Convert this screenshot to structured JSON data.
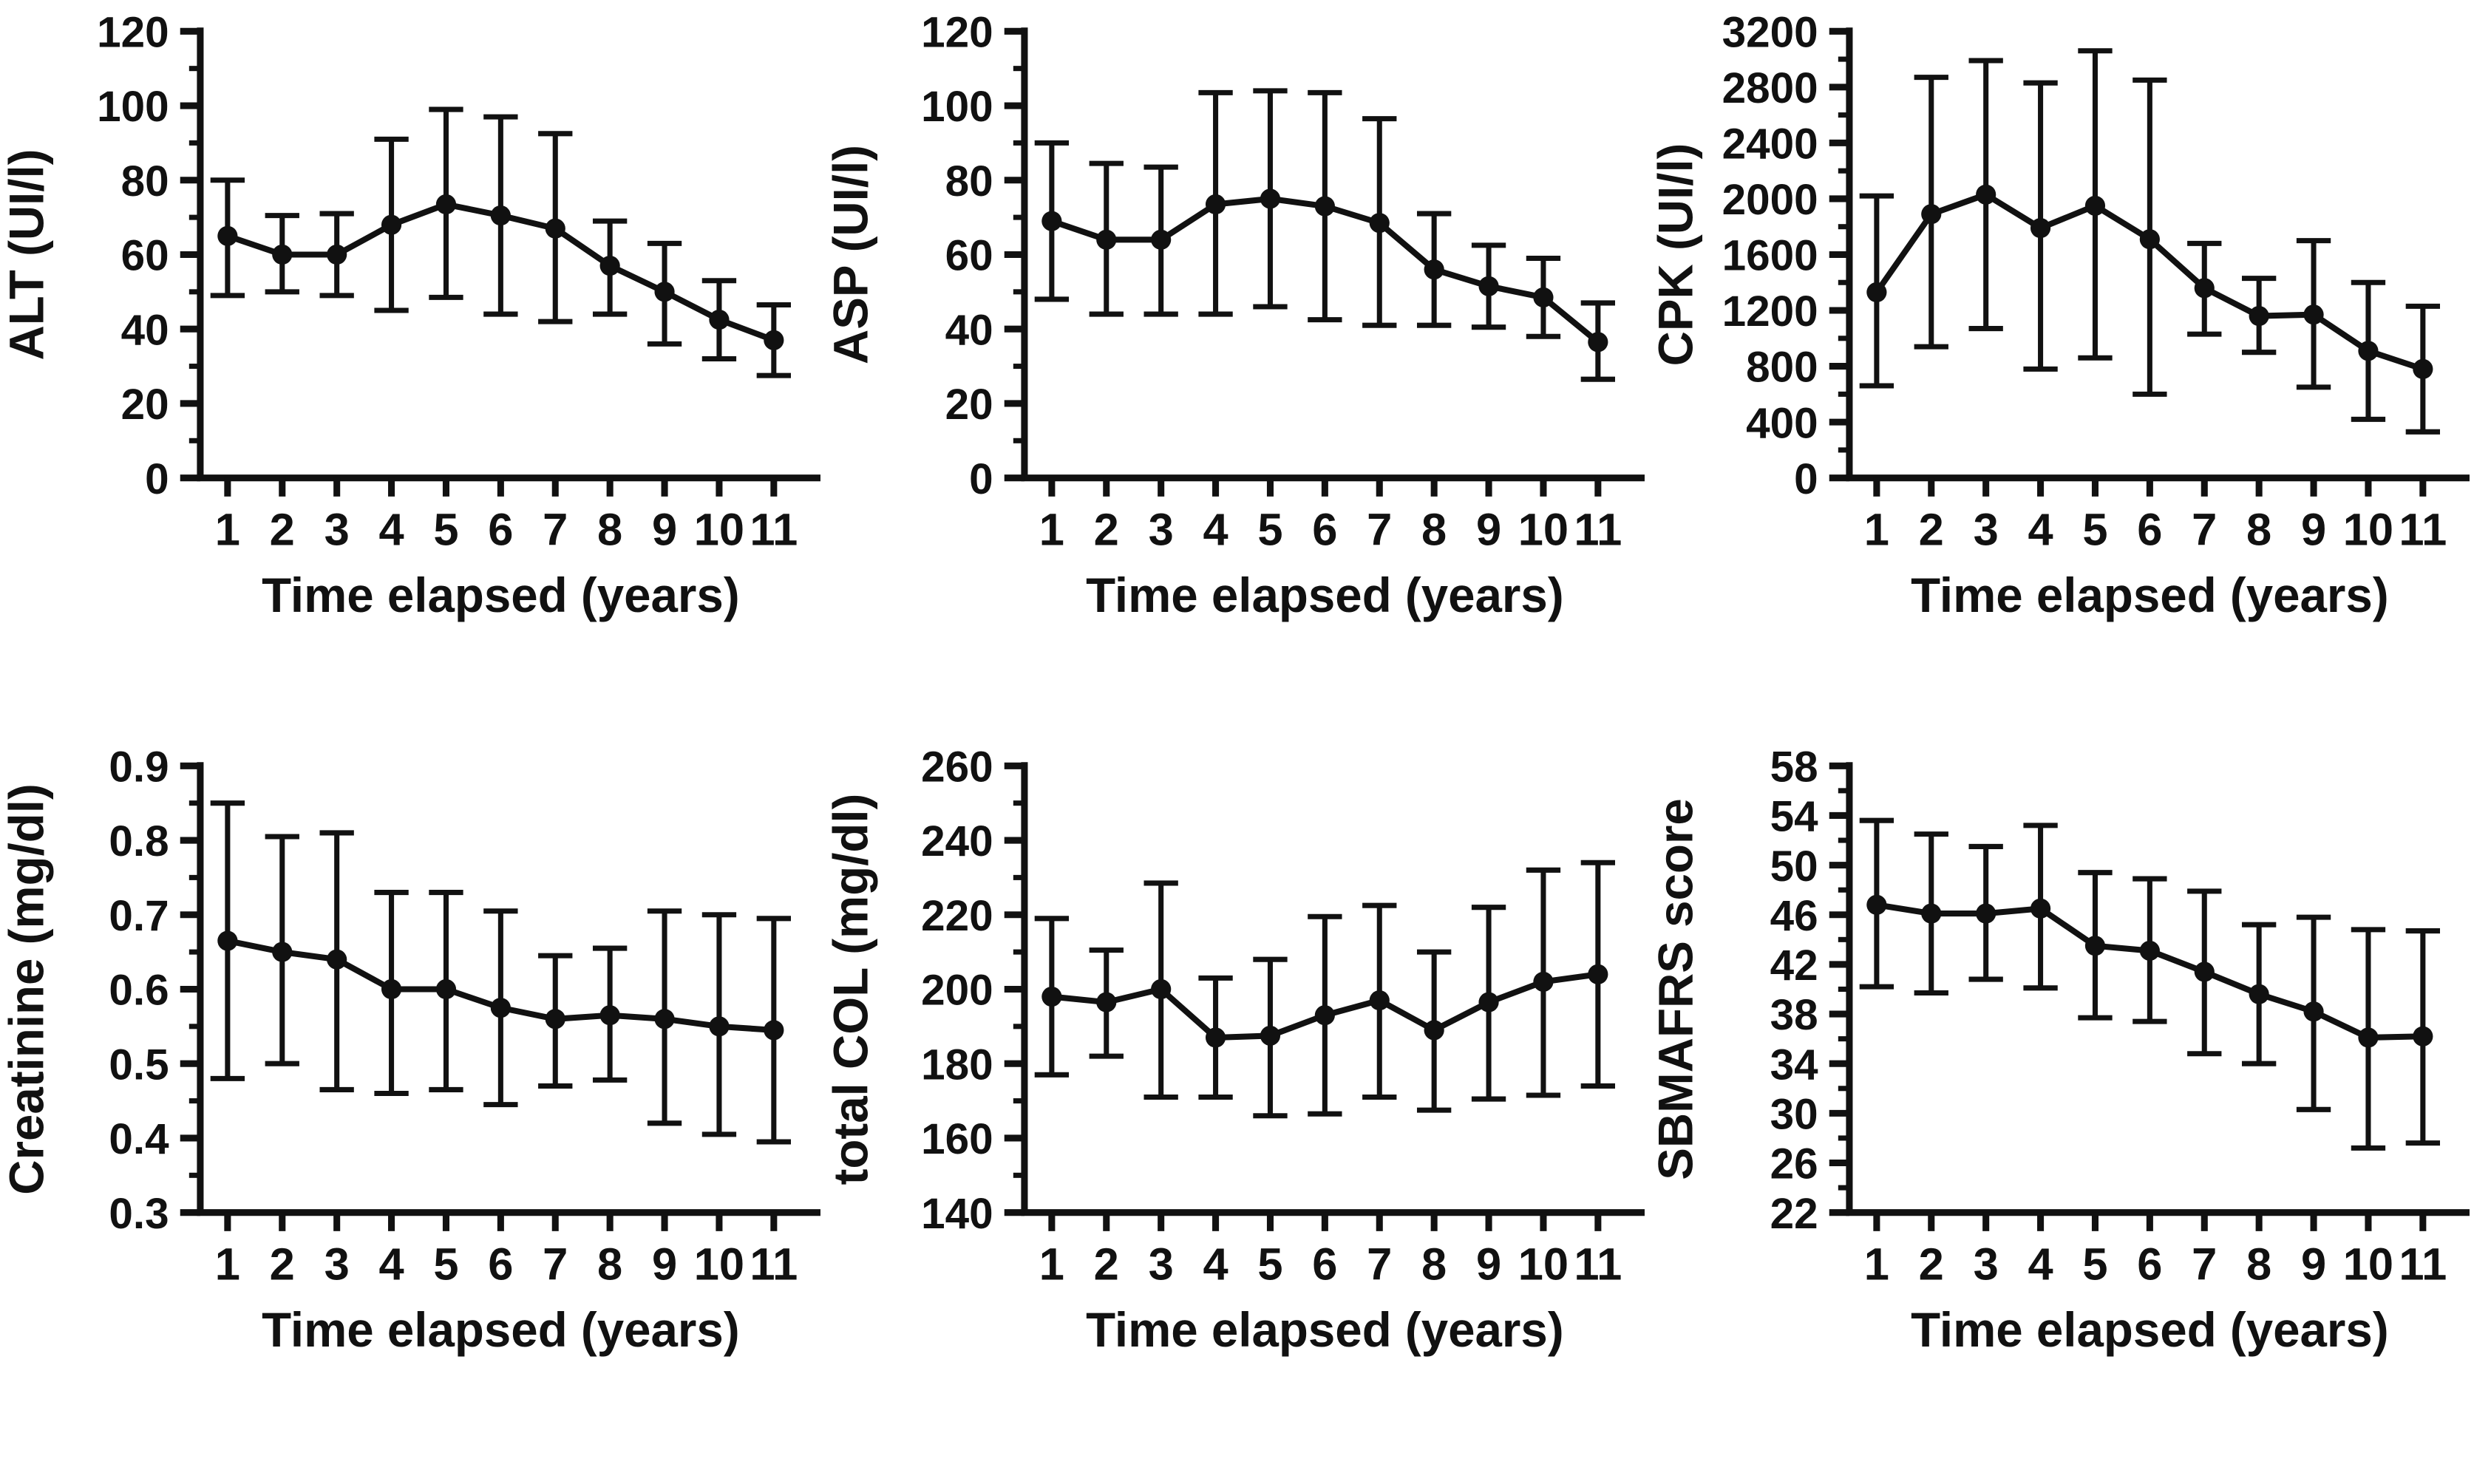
{
  "figure": {
    "background": "#ffffff",
    "ink": "#111111",
    "layout": "2 rows x 3 columns of mean ± error-bar line charts",
    "shared_xlabel": "Time elapsed (years)"
  },
  "chart_data": [
    {
      "id": "alt",
      "type": "line",
      "title": "",
      "xlabel": "Time elapsed (years)",
      "ylabel": "ALT (UI/l)",
      "x": [
        1,
        2,
        3,
        4,
        5,
        6,
        7,
        8,
        9,
        10,
        11
      ],
      "ylim": [
        0,
        120
      ],
      "yticks": [
        0,
        20,
        40,
        60,
        80,
        100,
        120
      ],
      "ytick_labels": [
        "0",
        "20",
        "40",
        "60",
        "80",
        "100",
        "120"
      ],
      "grid": false,
      "legend": null,
      "marker": "filled-circle",
      "series": [
        {
          "name": "mean with error bars",
          "values": [
            65,
            60,
            60,
            68,
            73.5,
            70.5,
            67,
            57,
            50,
            42.5,
            37
          ],
          "err_lo": [
            49,
            50,
            49,
            45,
            48.5,
            44,
            42,
            44,
            36,
            32,
            27.5
          ],
          "err_hi": [
            80,
            70.5,
            71,
            91,
            99,
            97,
            92.5,
            69,
            63,
            53,
            46.5
          ]
        }
      ]
    },
    {
      "id": "asp",
      "type": "line",
      "title": "",
      "xlabel": "Time elapsed (years)",
      "ylabel": "ASP (UI/l)",
      "x": [
        1,
        2,
        3,
        4,
        5,
        6,
        7,
        8,
        9,
        10,
        11
      ],
      "ylim": [
        0,
        120
      ],
      "yticks": [
        0,
        20,
        40,
        60,
        80,
        100,
        120
      ],
      "ytick_labels": [
        "0",
        "20",
        "40",
        "60",
        "80",
        "100",
        "120"
      ],
      "grid": false,
      "legend": null,
      "marker": "filled-circle",
      "series": [
        {
          "name": "mean with error bars",
          "values": [
            69,
            64,
            64,
            73.5,
            75,
            73,
            68.5,
            56,
            51.5,
            48.5,
            36.5
          ],
          "err_lo": [
            48,
            44,
            44,
            44,
            46,
            42.5,
            41,
            41,
            40.5,
            38,
            26.5
          ],
          "err_hi": [
            90,
            84.5,
            83.5,
            103.5,
            104,
            103.5,
            96.5,
            71,
            62.5,
            59,
            47
          ]
        }
      ]
    },
    {
      "id": "cpk",
      "type": "line",
      "title": "",
      "xlabel": "Time elapsed (years)",
      "ylabel": "CPK (UI/l)",
      "x": [
        1,
        2,
        3,
        4,
        5,
        6,
        7,
        8,
        9,
        10,
        11
      ],
      "ylim": [
        0,
        3200
      ],
      "yticks": [
        0,
        400,
        800,
        1200,
        1600,
        2000,
        2400,
        2800,
        3200
      ],
      "ytick_labels": [
        "0",
        "400",
        "800",
        "1200",
        "1600",
        "2000",
        "2400",
        "2800",
        "3200"
      ],
      "grid": false,
      "legend": null,
      "marker": "filled-circle",
      "series": [
        {
          "name": "mean with error bars",
          "values": [
            1330,
            1890,
            2030,
            1790,
            1950,
            1710,
            1360,
            1160,
            1170,
            910,
            780
          ],
          "err_lo": [
            660,
            940,
            1070,
            780,
            860,
            600,
            1030,
            900,
            650,
            420,
            330
          ],
          "err_hi": [
            2020,
            2870,
            2990,
            2830,
            3060,
            2850,
            1680,
            1430,
            1700,
            1400,
            1230
          ]
        }
      ]
    },
    {
      "id": "creatinine",
      "type": "line",
      "title": "",
      "xlabel": "Time elapsed (years)",
      "ylabel": "Creatinine (mg/dl)",
      "x": [
        1,
        2,
        3,
        4,
        5,
        6,
        7,
        8,
        9,
        10,
        11
      ],
      "ylim": [
        0.3,
        0.9
      ],
      "yticks": [
        0.3,
        0.4,
        0.5,
        0.6,
        0.7,
        0.8,
        0.9
      ],
      "ytick_labels": [
        "0.3",
        "0.4",
        "0.5",
        "0.6",
        "0.7",
        "0.8",
        "0.9"
      ],
      "grid": false,
      "legend": null,
      "marker": "filled-circle",
      "series": [
        {
          "name": "mean with error bars",
          "values": [
            0.665,
            0.65,
            0.64,
            0.6,
            0.6,
            0.575,
            0.56,
            0.565,
            0.56,
            0.55,
            0.545
          ],
          "err_lo": [
            0.48,
            0.5,
            0.465,
            0.46,
            0.465,
            0.445,
            0.47,
            0.478,
            0.42,
            0.405,
            0.395
          ],
          "err_hi": [
            0.85,
            0.805,
            0.81,
            0.73,
            0.73,
            0.705,
            0.645,
            0.655,
            0.705,
            0.7,
            0.695
          ]
        }
      ]
    },
    {
      "id": "total-col",
      "type": "line",
      "title": "",
      "xlabel": "Time elapsed (years)",
      "ylabel": "total COL (mg/dl)",
      "x": [
        1,
        2,
        3,
        4,
        5,
        6,
        7,
        8,
        9,
        10,
        11
      ],
      "ylim": [
        140,
        260
      ],
      "yticks": [
        140,
        160,
        180,
        200,
        220,
        240,
        260
      ],
      "ytick_labels": [
        "140",
        "160",
        "180",
        "200",
        "220",
        "240",
        "260"
      ],
      "grid": false,
      "legend": null,
      "marker": "filled-circle",
      "series": [
        {
          "name": "mean with error bars",
          "values": [
            198,
            196.5,
            200,
            187,
            187.5,
            193,
            197,
            189,
            196.5,
            202,
            204
          ],
          "err_lo": [
            177,
            182,
            171,
            171,
            166,
            166.5,
            171,
            167.5,
            170.5,
            171.5,
            174
          ],
          "err_hi": [
            219,
            210.5,
            228.5,
            203,
            208,
            219.5,
            222.5,
            210,
            222,
            232,
            234
          ]
        }
      ]
    },
    {
      "id": "sbmafrs",
      "type": "line",
      "title": "",
      "xlabel": "Time elapsed (years)",
      "ylabel": "SBMAFRS score",
      "x": [
        1,
        2,
        3,
        4,
        5,
        6,
        7,
        8,
        9,
        10,
        11
      ],
      "ylim": [
        22,
        58
      ],
      "yticks": [
        22,
        26,
        30,
        34,
        38,
        42,
        46,
        50,
        54,
        58
      ],
      "ytick_labels": [
        "22",
        "26",
        "30",
        "34",
        "38",
        "42",
        "46",
        "50",
        "54",
        "58"
      ],
      "grid": false,
      "legend": null,
      "marker": "filled-circle",
      "series": [
        {
          "name": "mean with error bars",
          "values": [
            46.8,
            46.1,
            46.1,
            46.5,
            43.5,
            43.1,
            41.4,
            39.6,
            38.2,
            36.1,
            36.2
          ],
          "err_lo": [
            40.2,
            39.7,
            40.8,
            40.1,
            37.7,
            37.4,
            34.8,
            34,
            30.3,
            27.2,
            27.6
          ],
          "err_hi": [
            53.6,
            52.5,
            51.5,
            53.2,
            49.4,
            48.9,
            47.9,
            45.2,
            45.8,
            44.8,
            44.7
          ]
        }
      ]
    }
  ]
}
